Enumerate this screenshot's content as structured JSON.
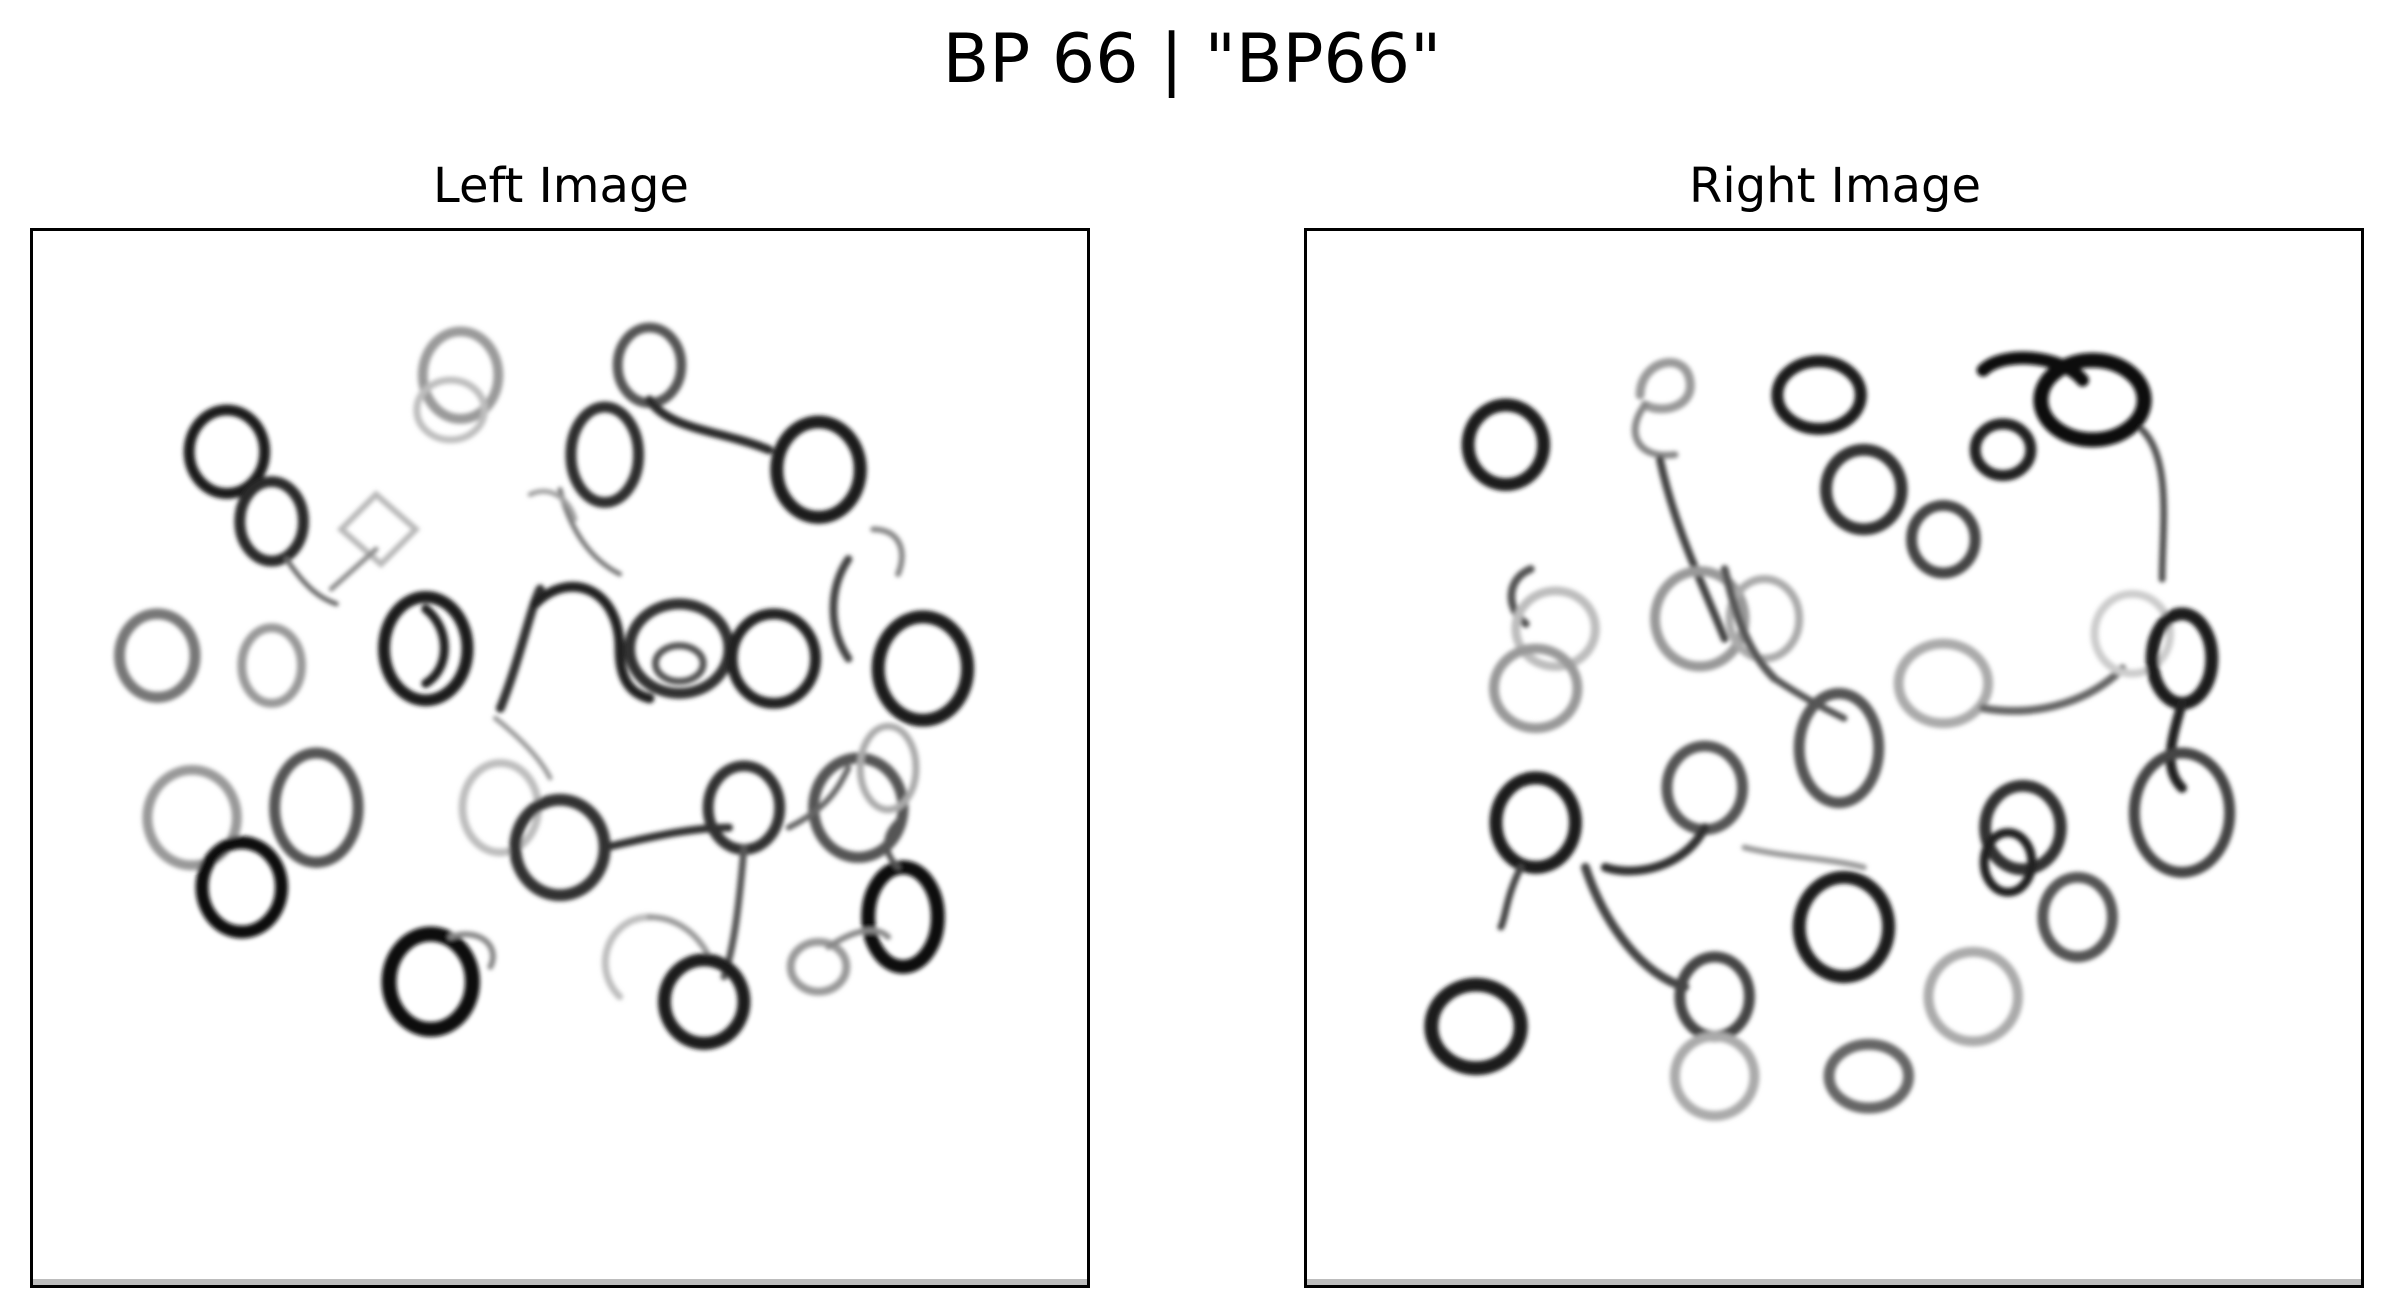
{
  "figure": {
    "title": "BP 66 | \"BP66\""
  },
  "panels": [
    {
      "title": "Left Image"
    },
    {
      "title": "Right Image"
    }
  ],
  "colors": {
    "background": "#ffffff",
    "frame": "#000000",
    "ink": "#111111"
  }
}
